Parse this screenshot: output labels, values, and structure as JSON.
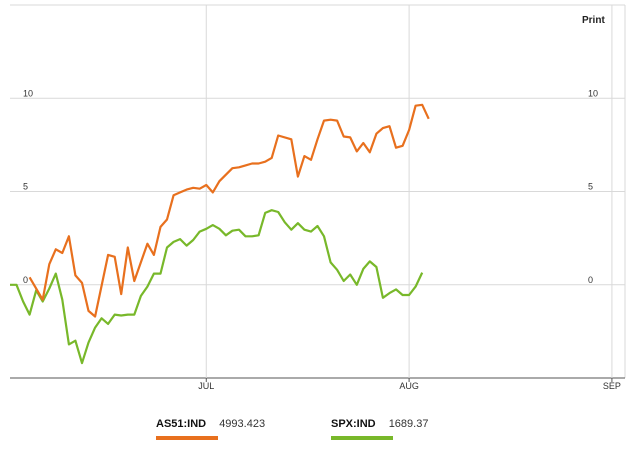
{
  "print_label": "Print",
  "colors": {
    "series0": "#e8701e",
    "series1": "#78b82a",
    "grid": "#d9d9d9",
    "axis": "#555555"
  },
  "chart_data": {
    "type": "line",
    "xticks": [
      {
        "label": "JUL",
        "x": 31
      },
      {
        "label": "AUG",
        "x": 62
      },
      {
        "label": "SEP",
        "x": 93
      }
    ],
    "yticks": [
      0,
      5,
      10
    ],
    "xlim": [
      1,
      95
    ],
    "ylim": [
      -5,
      15
    ],
    "grid": true,
    "legend_position": "bottom",
    "series": [
      {
        "name": "AS51:IND",
        "last_value": "4993.423",
        "points": [
          [
            4,
            0.4
          ],
          [
            6,
            -0.8
          ],
          [
            7,
            1.1
          ],
          [
            8,
            1.9
          ],
          [
            9,
            1.7
          ],
          [
            10,
            2.6
          ],
          [
            11,
            0.5
          ],
          [
            12,
            0.1
          ],
          [
            13,
            -1.4
          ],
          [
            14,
            -1.7
          ],
          [
            16,
            1.6
          ],
          [
            17,
            1.5
          ],
          [
            18,
            -0.5
          ],
          [
            19,
            2.0
          ],
          [
            20,
            0.2
          ],
          [
            22,
            2.2
          ],
          [
            23,
            1.6
          ],
          [
            24,
            3.1
          ],
          [
            25,
            3.5
          ],
          [
            26,
            4.8
          ],
          [
            27,
            4.95
          ],
          [
            28,
            5.1
          ],
          [
            29,
            5.2
          ],
          [
            30,
            5.15
          ],
          [
            31,
            5.35
          ],
          [
            32,
            4.95
          ],
          [
            33,
            5.55
          ],
          [
            34,
            5.9
          ],
          [
            35,
            6.25
          ],
          [
            36,
            6.3
          ],
          [
            37,
            6.4
          ],
          [
            38,
            6.5
          ],
          [
            39,
            6.5
          ],
          [
            40,
            6.6
          ],
          [
            41,
            6.8
          ],
          [
            42,
            8.0
          ],
          [
            44,
            7.8
          ],
          [
            45,
            5.8
          ],
          [
            46,
            6.9
          ],
          [
            47,
            6.7
          ],
          [
            48,
            7.8
          ],
          [
            49,
            8.8
          ],
          [
            50,
            8.85
          ],
          [
            51,
            8.8
          ],
          [
            52,
            7.95
          ],
          [
            53,
            7.9
          ],
          [
            54,
            7.15
          ],
          [
            55,
            7.6
          ],
          [
            56,
            7.1
          ],
          [
            57,
            8.1
          ],
          [
            58,
            8.4
          ],
          [
            59,
            8.5
          ],
          [
            60,
            7.35
          ],
          [
            61,
            7.45
          ],
          [
            62,
            8.3
          ],
          [
            63,
            9.6
          ],
          [
            64,
            9.65
          ],
          [
            65,
            8.9
          ]
        ]
      },
      {
        "name": "SPX:IND",
        "last_value": "1689.37",
        "points": [
          [
            1,
            0.0
          ],
          [
            2,
            0.0
          ],
          [
            3,
            -0.9
          ],
          [
            4,
            -1.6
          ],
          [
            5,
            -0.3
          ],
          [
            6,
            -0.9
          ],
          [
            7,
            -0.2
          ],
          [
            8,
            0.6
          ],
          [
            9,
            -0.8
          ],
          [
            10,
            -3.2
          ],
          [
            11,
            -3.0
          ],
          [
            12,
            -4.2
          ],
          [
            13,
            -3.1
          ],
          [
            14,
            -2.3
          ],
          [
            15,
            -1.8
          ],
          [
            16,
            -2.1
          ],
          [
            17,
            -1.6
          ],
          [
            18,
            -1.65
          ],
          [
            19,
            -1.6
          ],
          [
            20,
            -1.6
          ],
          [
            21,
            -0.6
          ],
          [
            22,
            -0.1
          ],
          [
            23,
            0.6
          ],
          [
            24,
            0.6
          ],
          [
            25,
            2.0
          ],
          [
            26,
            2.3
          ],
          [
            27,
            2.45
          ],
          [
            28,
            2.1
          ],
          [
            29,
            2.4
          ],
          [
            30,
            2.85
          ],
          [
            31,
            3.0
          ],
          [
            32,
            3.2
          ],
          [
            33,
            3.0
          ],
          [
            34,
            2.65
          ],
          [
            35,
            2.9
          ],
          [
            36,
            2.95
          ],
          [
            37,
            2.6
          ],
          [
            38,
            2.6
          ],
          [
            39,
            2.65
          ],
          [
            40,
            3.85
          ],
          [
            41,
            4.0
          ],
          [
            42,
            3.9
          ],
          [
            43,
            3.35
          ],
          [
            44,
            2.95
          ],
          [
            45,
            3.3
          ],
          [
            46,
            2.95
          ],
          [
            47,
            2.85
          ],
          [
            48,
            3.15
          ],
          [
            49,
            2.6
          ],
          [
            50,
            1.2
          ],
          [
            51,
            0.8
          ],
          [
            52,
            0.2
          ],
          [
            53,
            0.55
          ],
          [
            54,
            0.0
          ],
          [
            55,
            0.85
          ],
          [
            56,
            1.25
          ],
          [
            57,
            0.95
          ],
          [
            58,
            -0.7
          ],
          [
            59,
            -0.45
          ],
          [
            60,
            -0.25
          ],
          [
            61,
            -0.55
          ],
          [
            62,
            -0.55
          ],
          [
            63,
            -0.1
          ],
          [
            64,
            0.65
          ]
        ]
      }
    ]
  }
}
